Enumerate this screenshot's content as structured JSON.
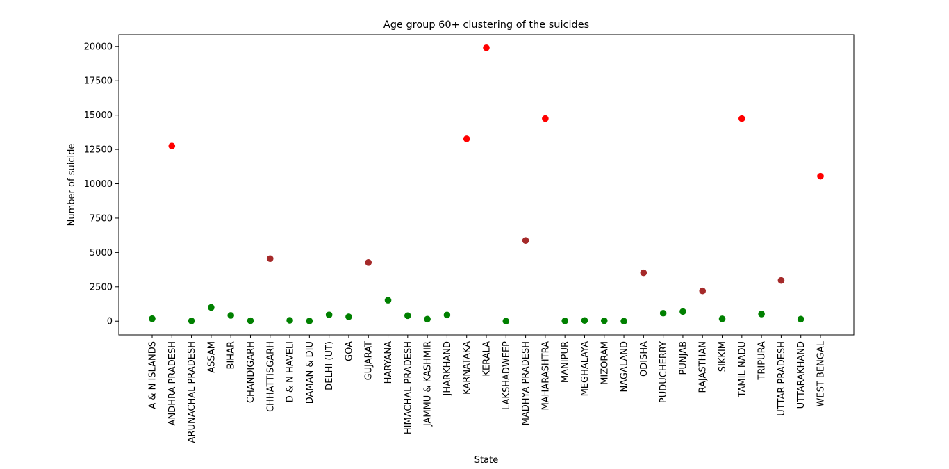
{
  "chart_data": {
    "type": "scatter",
    "title": "Age group 60+ clustering of the suicides",
    "xlabel": "State",
    "ylabel": "Number of suicide",
    "ylim": [
      -1000,
      20850
    ],
    "yticks": [
      0,
      2500,
      5000,
      7500,
      10000,
      12500,
      15000,
      17500,
      20000
    ],
    "grid": false,
    "categories": [
      "A & N ISLANDS",
      "ANDHRA PRADESH",
      "ARUNACHAL PRADESH",
      "ASSAM",
      "BIHAR",
      "CHANDIGARH",
      "CHHATTISGARH",
      "D & N HAVELI",
      "DAMAN & DIU",
      "DELHI (UT)",
      "GOA",
      "GUJARAT",
      "HARYANA",
      "HIMACHAL PRADESH",
      "JAMMU & KASHMIR",
      "JHARKHAND",
      "KARNATAKA",
      "KERALA",
      "LAKSHADWEEP",
      "MADHYA PRADESH",
      "MAHARASHTRA",
      "MANIPUR",
      "MEGHALAYA",
      "MIZORAM",
      "NAGALAND",
      "ODISHA",
      "PUDUCHERRY",
      "PUNJAB",
      "RAJASTHAN",
      "SIKKIM",
      "TAMIL NADU",
      "TRIPURA",
      "UTTAR PRADESH",
      "UTTARAKHAND",
      "WEST BENGAL"
    ],
    "values": [
      180,
      12750,
      20,
      1000,
      420,
      30,
      4550,
      60,
      10,
      460,
      320,
      4270,
      1520,
      400,
      150,
      450,
      13270,
      19900,
      0,
      5870,
      14750,
      20,
      50,
      30,
      0,
      3520,
      580,
      700,
      2200,
      170,
      14750,
      520,
      2960,
      150,
      10550
    ],
    "point_colors": [
      "#008000",
      "#ff0000",
      "#008000",
      "#008000",
      "#008000",
      "#008000",
      "#a52a2a",
      "#008000",
      "#008000",
      "#008000",
      "#008000",
      "#a52a2a",
      "#008000",
      "#008000",
      "#008000",
      "#008000",
      "#ff0000",
      "#ff0000",
      "#008000",
      "#a52a2a",
      "#ff0000",
      "#008000",
      "#008000",
      "#008000",
      "#008000",
      "#a52a2a",
      "#008000",
      "#008000",
      "#a52a2a",
      "#008000",
      "#ff0000",
      "#008000",
      "#a52a2a",
      "#008000",
      "#ff0000"
    ]
  }
}
